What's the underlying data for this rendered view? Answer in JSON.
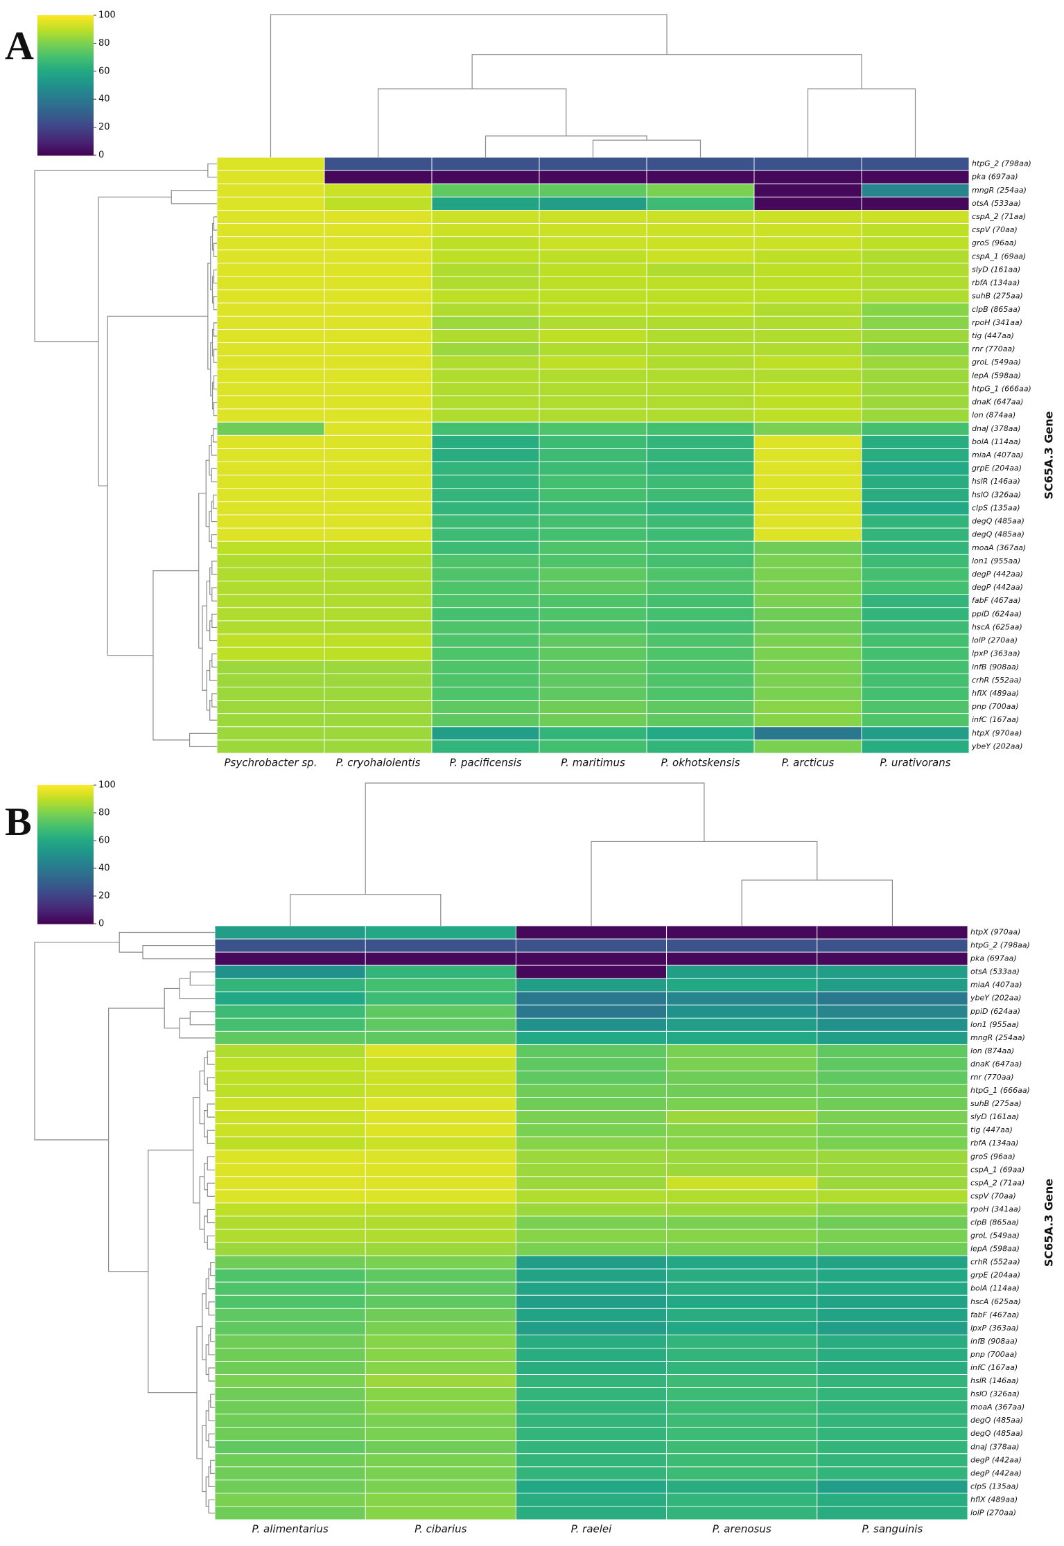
{
  "chart_data": [
    {
      "type": "heatmap",
      "panel_label": "A",
      "ylabel": "SC65A.3 Gene",
      "cmap": "viridis",
      "colorbar": {
        "lim": [
          0,
          100
        ],
        "ticks": [
          0,
          20,
          40,
          60,
          80,
          100
        ]
      },
      "x": [
        "Psychrobacter sp.",
        "P. cryohalolentis",
        "P. pacificensis",
        "P. maritimus",
        "P. okhotskensis",
        "P. arcticus",
        "P. urativorans"
      ],
      "y": [
        "htpG_2 (798aa)",
        "pka (697aa)",
        "mngR (254aa)",
        "otsA (533aa)",
        "cspA_2 (71aa)",
        "cspV (70aa)",
        "groS (96aa)",
        "cspA_1 (69aa)",
        "slyD (161aa)",
        "rbfA (134aa)",
        "suhB (275aa)",
        "clpB (865aa)",
        "rpoH (341aa)",
        "tig (447aa)",
        "rnr (770aa)",
        "groL (549aa)",
        "lepA (598aa)",
        "htpG_1 (666aa)",
        "dnaK (647aa)",
        "lon (874aa)",
        "dnaJ (378aa)",
        "bolA (114aa)",
        "miaA (407aa)",
        "grpE (204aa)",
        "hslR (146aa)",
        "hslO (326aa)",
        "clpS (135aa)",
        "degQ (485aa)",
        "degQ (485aa)",
        "moaA (367aa)",
        "lon1 (955aa)",
        "degP (442aa)",
        "degP (442aa)",
        "fabF (467aa)",
        "ppiD (624aa)",
        "hscA (625aa)",
        "lolP (270aa)",
        "lpxP (363aa)",
        "infB (908aa)",
        "crhR (552aa)",
        "hflX (489aa)",
        "pnp (700aa)",
        "infC (167aa)",
        "htpX (970aa)",
        "ybeY (202aa)"
      ],
      "values": [
        [
          95,
          25,
          25,
          25,
          25,
          25,
          25
        ],
        [
          95,
          2,
          2,
          2,
          2,
          2,
          2
        ],
        [
          95,
          92,
          75,
          75,
          80,
          2,
          45
        ],
        [
          95,
          90,
          58,
          55,
          68,
          2,
          2
        ],
        [
          95,
          95,
          92,
          92,
          92,
          92,
          92
        ],
        [
          95,
          95,
          92,
          92,
          92,
          92,
          90
        ],
        [
          95,
          95,
          90,
          92,
          92,
          92,
          90
        ],
        [
          95,
          95,
          90,
          90,
          92,
          90,
          88
        ],
        [
          95,
          95,
          88,
          90,
          88,
          90,
          88
        ],
        [
          95,
          95,
          88,
          90,
          90,
          90,
          88
        ],
        [
          95,
          95,
          90,
          90,
          90,
          90,
          88
        ],
        [
          95,
          95,
          88,
          90,
          90,
          88,
          82
        ],
        [
          95,
          95,
          85,
          88,
          88,
          88,
          82
        ],
        [
          95,
          95,
          88,
          90,
          88,
          88,
          85
        ],
        [
          95,
          95,
          85,
          88,
          88,
          88,
          82
        ],
        [
          95,
          95,
          88,
          90,
          88,
          90,
          85
        ],
        [
          95,
          95,
          88,
          88,
          88,
          88,
          85
        ],
        [
          95,
          95,
          88,
          88,
          88,
          90,
          85
        ],
        [
          95,
          95,
          88,
          88,
          88,
          90,
          85
        ],
        [
          95,
          95,
          88,
          88,
          88,
          90,
          85
        ],
        [
          78,
          95,
          70,
          72,
          70,
          80,
          70
        ],
        [
          95,
          95,
          62,
          68,
          65,
          95,
          62
        ],
        [
          95,
          95,
          62,
          68,
          65,
          95,
          62
        ],
        [
          95,
          95,
          65,
          68,
          65,
          95,
          60
        ],
        [
          95,
          95,
          65,
          70,
          68,
          95,
          62
        ],
        [
          95,
          95,
          65,
          70,
          68,
          95,
          62
        ],
        [
          95,
          95,
          65,
          68,
          65,
          95,
          60
        ],
        [
          95,
          95,
          68,
          70,
          68,
          95,
          65
        ],
        [
          95,
          95,
          68,
          70,
          68,
          95,
          65
        ],
        [
          90,
          90,
          68,
          72,
          70,
          78,
          65
        ],
        [
          88,
          88,
          72,
          72,
          70,
          80,
          68
        ],
        [
          88,
          88,
          72,
          75,
          72,
          80,
          70
        ],
        [
          88,
          88,
          72,
          75,
          72,
          80,
          70
        ],
        [
          88,
          88,
          72,
          72,
          70,
          80,
          65
        ],
        [
          88,
          88,
          70,
          72,
          70,
          78,
          65
        ],
        [
          88,
          88,
          72,
          72,
          70,
          78,
          68
        ],
        [
          90,
          90,
          72,
          75,
          72,
          80,
          70
        ],
        [
          90,
          90,
          72,
          75,
          72,
          80,
          70
        ],
        [
          85,
          85,
          72,
          75,
          72,
          80,
          70
        ],
        [
          85,
          85,
          72,
          75,
          72,
          80,
          70
        ],
        [
          85,
          85,
          72,
          75,
          72,
          80,
          70
        ],
        [
          85,
          85,
          75,
          78,
          75,
          82,
          72
        ],
        [
          85,
          85,
          75,
          78,
          75,
          82,
          72
        ],
        [
          85,
          85,
          55,
          65,
          60,
          40,
          55
        ],
        [
          85,
          85,
          65,
          70,
          65,
          80,
          62
        ]
      ]
    },
    {
      "type": "heatmap",
      "panel_label": "B",
      "ylabel": "SC65A.3 Gene",
      "cmap": "viridis",
      "colorbar": {
        "lim": [
          0,
          100
        ],
        "ticks": [
          0,
          20,
          40,
          60,
          80,
          100
        ]
      },
      "x": [
        "P. alimentarius",
        "P. cibarius",
        "P. raelei",
        "P. arenosus",
        "P. sanguinis"
      ],
      "y": [
        "htpX (970aa)",
        "htpG_2 (798aa)",
        "pka (697aa)",
        "otsA (533aa)",
        "miaA (407aa)",
        "ybeY (202aa)",
        "ppiD (624aa)",
        "lon1 (955aa)",
        "mngR (254aa)",
        "lon (874aa)",
        "dnaK (647aa)",
        "rnr (770aa)",
        "htpG_1 (666aa)",
        "suhB (275aa)",
        "slyD (161aa)",
        "tig (447aa)",
        "rbfA (134aa)",
        "groS (96aa)",
        "cspA_1 (69aa)",
        "cspA_2 (71aa)",
        "cspV (70aa)",
        "rpoH (341aa)",
        "clpB (865aa)",
        "groL (549aa)",
        "lepA (598aa)",
        "crhR (552aa)",
        "grpE (204aa)",
        "bolA (114aa)",
        "hscA (625aa)",
        "fabF (467aa)",
        "lpxP (363aa)",
        "infB (908aa)",
        "pnp (700aa)",
        "infC (167aa)",
        "hslR (146aa)",
        "hslO (326aa)",
        "moaA (367aa)",
        "degQ (485aa)",
        "degQ (485aa)",
        "dnaJ (378aa)",
        "degP (442aa)",
        "degP (442aa)",
        "clpS (135aa)",
        "hflX (489aa)",
        "lolP (270aa)"
      ],
      "values": [
        [
          55,
          60,
          2,
          2,
          2
        ],
        [
          25,
          25,
          25,
          25,
          25
        ],
        [
          2,
          2,
          2,
          2,
          2
        ],
        [
          50,
          65,
          2,
          55,
          55
        ],
        [
          65,
          70,
          55,
          60,
          55
        ],
        [
          60,
          68,
          40,
          45,
          40
        ],
        [
          68,
          75,
          40,
          50,
          45
        ],
        [
          70,
          75,
          50,
          55,
          50
        ],
        [
          75,
          75,
          60,
          60,
          55
        ],
        [
          88,
          95,
          75,
          80,
          75
        ],
        [
          90,
          92,
          75,
          80,
          75
        ],
        [
          90,
          92,
          75,
          78,
          75
        ],
        [
          90,
          92,
          78,
          78,
          78
        ],
        [
          92,
          95,
          78,
          80,
          78
        ],
        [
          92,
          95,
          80,
          85,
          80
        ],
        [
          92,
          95,
          80,
          82,
          80
        ],
        [
          90,
          92,
          82,
          82,
          80
        ],
        [
          95,
          95,
          85,
          85,
          85
        ],
        [
          95,
          95,
          85,
          85,
          85
        ],
        [
          95,
          95,
          85,
          92,
          85
        ],
        [
          95,
          95,
          88,
          88,
          88
        ],
        [
          90,
          90,
          85,
          85,
          82
        ],
        [
          88,
          88,
          80,
          80,
          78
        ],
        [
          88,
          88,
          82,
          82,
          80
        ],
        [
          85,
          85,
          80,
          80,
          78
        ],
        [
          78,
          80,
          55,
          60,
          58
        ],
        [
          72,
          75,
          58,
          62,
          60
        ],
        [
          72,
          75,
          58,
          62,
          60
        ],
        [
          72,
          75,
          55,
          60,
          58
        ],
        [
          75,
          78,
          58,
          62,
          58
        ],
        [
          75,
          80,
          55,
          60,
          55
        ],
        [
          78,
          82,
          62,
          65,
          62
        ],
        [
          78,
          82,
          62,
          65,
          62
        ],
        [
          78,
          82,
          62,
          65,
          62
        ],
        [
          80,
          85,
          65,
          68,
          65
        ],
        [
          78,
          82,
          65,
          68,
          65
        ],
        [
          78,
          82,
          65,
          68,
          65
        ],
        [
          78,
          80,
          65,
          68,
          65
        ],
        [
          78,
          80,
          65,
          68,
          65
        ],
        [
          75,
          78,
          65,
          68,
          65
        ],
        [
          78,
          80,
          65,
          68,
          65
        ],
        [
          78,
          80,
          65,
          68,
          65
        ],
        [
          78,
          80,
          60,
          62,
          55
        ],
        [
          80,
          82,
          62,
          65,
          62
        ],
        [
          78,
          82,
          62,
          65,
          62
        ]
      ]
    }
  ]
}
